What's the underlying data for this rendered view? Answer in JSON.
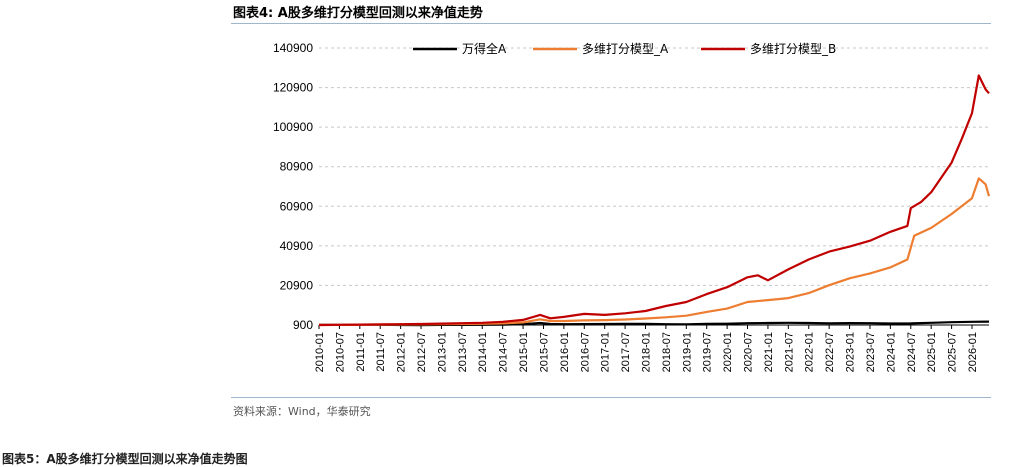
{
  "figure": {
    "title": "图表4: A股多维打分模型回测以来净值走势",
    "source": "资料来源：Wind，华泰研究",
    "next_title": "图表5：A股多维打分模型回测以来净值走势图"
  },
  "chart_data": {
    "type": "line",
    "title": "",
    "xlabel": "",
    "ylabel": "",
    "ylim": [
      900,
      140900
    ],
    "y_ticks": [
      "900",
      "20900",
      "40900",
      "60900",
      "80900",
      "100900",
      "120900",
      "140900"
    ],
    "x_ticks": [
      "2010-01",
      "2010-07",
      "2011-01",
      "2011-07",
      "2012-01",
      "2012-07",
      "2013-01",
      "2013-07",
      "2014-01",
      "2014-07",
      "2015-01",
      "2015-07",
      "2016-01",
      "2016-07",
      "2017-01",
      "2017-07",
      "2018-01",
      "2018-07",
      "2019-01",
      "2019-07",
      "2020-01",
      "2020-07",
      "2021-01",
      "2021-07",
      "2022-01",
      "2022-07",
      "2023-01",
      "2023-07",
      "2024-01",
      "2024-07",
      "2025-01",
      "2025-07",
      "2026-01"
    ],
    "x_range": [
      "2010-01",
      "2026-06"
    ],
    "grid": "horizontal dashed",
    "legend": "top",
    "series": [
      {
        "name": "万得全A",
        "color": "#000000",
        "points": [
          [
            "2010-01",
            1000
          ],
          [
            "2010-07",
            950
          ],
          [
            "2011-01",
            1050
          ],
          [
            "2011-07",
            1000
          ],
          [
            "2012-01",
            900
          ],
          [
            "2012-07",
            850
          ],
          [
            "2013-01",
            950
          ],
          [
            "2013-07",
            950
          ],
          [
            "2014-01",
            1000
          ],
          [
            "2014-07",
            1050
          ],
          [
            "2015-01",
            1300
          ],
          [
            "2015-06",
            1900
          ],
          [
            "2015-09",
            1400
          ],
          [
            "2016-01",
            1300
          ],
          [
            "2016-07",
            1350
          ],
          [
            "2017-01",
            1400
          ],
          [
            "2017-07",
            1450
          ],
          [
            "2018-01",
            1500
          ],
          [
            "2018-07",
            1300
          ],
          [
            "2019-01",
            1250
          ],
          [
            "2019-07",
            1450
          ],
          [
            "2020-01",
            1550
          ],
          [
            "2020-07",
            1800
          ],
          [
            "2021-01",
            1900
          ],
          [
            "2021-07",
            2000
          ],
          [
            "2022-01",
            1900
          ],
          [
            "2022-07",
            1750
          ],
          [
            "2023-01",
            1850
          ],
          [
            "2023-07",
            1800
          ],
          [
            "2024-01",
            1650
          ],
          [
            "2024-07",
            1700
          ],
          [
            "2025-01",
            2000
          ],
          [
            "2025-07",
            2300
          ],
          [
            "2026-01",
            2500
          ],
          [
            "2026-06",
            2600
          ]
        ]
      },
      {
        "name": "多维打分模型_A",
        "color": "#ed7d31",
        "points": [
          [
            "2010-01",
            900
          ],
          [
            "2010-07",
            950
          ],
          [
            "2011-01",
            1000
          ],
          [
            "2011-07",
            1100
          ],
          [
            "2012-01",
            1150
          ],
          [
            "2012-07",
            1200
          ],
          [
            "2013-01",
            1300
          ],
          [
            "2013-07",
            1400
          ],
          [
            "2014-01",
            1500
          ],
          [
            "2014-07",
            1700
          ],
          [
            "2015-01",
            2200
          ],
          [
            "2015-06",
            3800
          ],
          [
            "2015-09",
            2900
          ],
          [
            "2016-01",
            2900
          ],
          [
            "2016-07",
            3200
          ],
          [
            "2017-01",
            3400
          ],
          [
            "2017-07",
            3700
          ],
          [
            "2018-01",
            4200
          ],
          [
            "2018-07",
            4800
          ],
          [
            "2019-01",
            5600
          ],
          [
            "2019-07",
            7500
          ],
          [
            "2020-01",
            9200
          ],
          [
            "2020-07",
            12500
          ],
          [
            "2021-01",
            13500
          ],
          [
            "2021-07",
            14500
          ],
          [
            "2022-01",
            17000
          ],
          [
            "2022-07",
            21000
          ],
          [
            "2023-01",
            24500
          ],
          [
            "2023-07",
            27000
          ],
          [
            "2024-01",
            30000
          ],
          [
            "2024-06",
            34000
          ],
          [
            "2024-07",
            40000
          ],
          [
            "2024-08",
            46000
          ],
          [
            "2025-01",
            50000
          ],
          [
            "2025-07",
            57000
          ],
          [
            "2025-10",
            61000
          ],
          [
            "2026-01",
            65000
          ],
          [
            "2026-03",
            75000
          ],
          [
            "2026-05",
            72000
          ],
          [
            "2026-06",
            66000
          ]
        ]
      },
      {
        "name": "多维打分模型_B",
        "color": "#c00000",
        "points": [
          [
            "2010-01",
            900
          ],
          [
            "2010-07",
            1000
          ],
          [
            "2011-01",
            1100
          ],
          [
            "2011-07",
            1200
          ],
          [
            "2012-01",
            1300
          ],
          [
            "2012-07",
            1400
          ],
          [
            "2013-01",
            1600
          ],
          [
            "2013-07",
            1800
          ],
          [
            "2014-01",
            2000
          ],
          [
            "2014-07",
            2500
          ],
          [
            "2015-01",
            3500
          ],
          [
            "2015-06",
            6000
          ],
          [
            "2015-09",
            4300
          ],
          [
            "2016-01",
            5000
          ],
          [
            "2016-07",
            6500
          ],
          [
            "2017-01",
            6000
          ],
          [
            "2017-07",
            6800
          ],
          [
            "2018-01",
            8000
          ],
          [
            "2018-07",
            10500
          ],
          [
            "2019-01",
            12500
          ],
          [
            "2019-07",
            16500
          ],
          [
            "2020-01",
            20000
          ],
          [
            "2020-07",
            25000
          ],
          [
            "2020-10",
            26000
          ],
          [
            "2021-01",
            23500
          ],
          [
            "2021-07",
            29000
          ],
          [
            "2022-01",
            34000
          ],
          [
            "2022-07",
            38000
          ],
          [
            "2023-01",
            40500
          ],
          [
            "2023-07",
            43500
          ],
          [
            "2024-01",
            48000
          ],
          [
            "2024-06",
            51000
          ],
          [
            "2024-07",
            60000
          ],
          [
            "2024-10",
            63000
          ],
          [
            "2025-01",
            68000
          ],
          [
            "2025-07",
            83000
          ],
          [
            "2025-10",
            95000
          ],
          [
            "2026-01",
            108000
          ],
          [
            "2026-03",
            127000
          ],
          [
            "2026-05",
            120000
          ],
          [
            "2026-06",
            118000
          ]
        ]
      }
    ]
  }
}
